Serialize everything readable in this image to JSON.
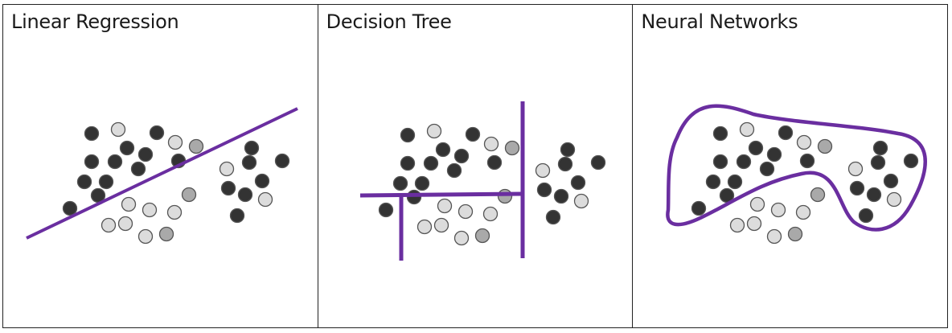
{
  "panels": [
    {
      "title": "Linear Regression",
      "model": "linear"
    },
    {
      "title": "Decision Tree",
      "model": "tree"
    },
    {
      "title": "Neural Networks",
      "model": "neural"
    }
  ],
  "colors": {
    "dark_point": "#333333",
    "light_point": "#dcdcdc",
    "mid_point": "#a9a9a9",
    "point_stroke": "#555555",
    "boundary": "#6a2ea0",
    "border": "#222222"
  },
  "icons": {
    "dark": "dark-data-point-icon",
    "light": "light-data-point-icon",
    "mid": "gray-data-point-icon"
  }
}
